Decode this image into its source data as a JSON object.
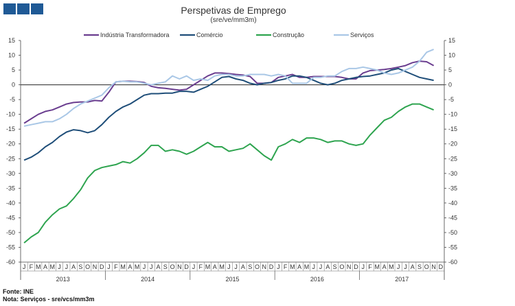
{
  "header": {
    "title": "Perspetivas de Emprego",
    "subtitle": "(sre/ve/mm3m)",
    "brand_color": "#1f5a96"
  },
  "footer": {
    "source": "Fonte: INE",
    "note": "Nota: Serviços - sre/vcs/mm3m"
  },
  "chart_data": {
    "type": "line",
    "title": "Perspetivas de Emprego",
    "subtitle": "(sre/ve/mm3m)",
    "ylim": [
      -60,
      15
    ],
    "yticks": [
      15,
      10,
      5,
      0,
      -5,
      -10,
      -15,
      -20,
      -25,
      -30,
      -35,
      -40,
      -45,
      -50,
      -55,
      -60
    ],
    "y_axis_right": true,
    "grid": false,
    "legend_position": "top",
    "month_labels": [
      "J",
      "F",
      "M",
      "A",
      "M",
      "J",
      "J",
      "A",
      "S",
      "O",
      "N",
      "D"
    ],
    "years": [
      "2013",
      "2014",
      "2015",
      "2016",
      "2017"
    ],
    "series": [
      {
        "name": "Indústria Transformadora",
        "color": "#6a3d8f",
        "values": [
          -13,
          -11.5,
          -10,
          -9,
          -8.5,
          -7.5,
          -6.5,
          -6,
          -5.8,
          -5.8,
          -5.3,
          -5.5,
          -2.5,
          1,
          1.2,
          1.2,
          1.1,
          0.8,
          -0.5,
          -1,
          -1.2,
          -1.5,
          -1.8,
          -1.5,
          0,
          1.5,
          3,
          4,
          4,
          3.8,
          3.5,
          3.3,
          2.8,
          0.5,
          0.5,
          0.8,
          2.5,
          3,
          3.5,
          2.5,
          2.5,
          2.8,
          2.8,
          2.8,
          2.8,
          2.5,
          2,
          2,
          4,
          4.8,
          5,
          5.2,
          5.5,
          6,
          6.5,
          7.5,
          8,
          7.8,
          6.5
        ]
      },
      {
        "name": "Comércio",
        "color": "#1f4e79",
        "values": [
          -25.5,
          -24.5,
          -23,
          -21,
          -19.5,
          -17.5,
          -16,
          -15.2,
          -15.5,
          -16.2,
          -15.5,
          -13.5,
          -11,
          -9,
          -7.5,
          -6.5,
          -5,
          -3.5,
          -3,
          -3,
          -2.8,
          -2.8,
          -2.2,
          -2.2,
          -2.5,
          -1.5,
          -0.5,
          1,
          2.5,
          2.8,
          2,
          1.5,
          0.5,
          0,
          0.5,
          0.8,
          1.5,
          2,
          3,
          3,
          2.5,
          1.5,
          0.5,
          0,
          0.5,
          1.5,
          2,
          2.5,
          2.8,
          3,
          3.5,
          4,
          5,
          5.5,
          4.5,
          3.5,
          2.5,
          2,
          1.5
        ]
      },
      {
        "name": "Construção",
        "color": "#2ea44f",
        "values": [
          -53.5,
          -51.5,
          -50,
          -46.5,
          -44,
          -42,
          -41,
          -38.5,
          -35.5,
          -31.5,
          -29,
          -28,
          -27.5,
          -27,
          -26,
          -26.5,
          -25,
          -23,
          -20.5,
          -20.5,
          -22.5,
          -22,
          -22.5,
          -23.5,
          -22.5,
          -21,
          -19.5,
          -21,
          -21,
          -22.5,
          -22,
          -21.5,
          -20,
          -22,
          -24,
          -25.5,
          -21,
          -20,
          -18.5,
          -19.5,
          -18,
          -18,
          -18.5,
          -19.5,
          -19,
          -19,
          -20,
          -20.5,
          -20,
          -17,
          -14.5,
          -12,
          -11,
          -9,
          -7.5,
          -6.5,
          -6.5,
          -7.5,
          -8.5
        ]
      },
      {
        "name": "Serviços",
        "color": "#a9c7e6",
        "values": [
          -14,
          -13.5,
          -13,
          -12.5,
          -12.5,
          -11.5,
          -10,
          -8,
          -6.5,
          -5.5,
          -4.5,
          -3.5,
          -1,
          1,
          1.2,
          1,
          1,
          0.5,
          0,
          0.5,
          1,
          3,
          2,
          3,
          1.5,
          2,
          1.5,
          3,
          3.5,
          3.5,
          3,
          3,
          3.5,
          3.5,
          3.5,
          3,
          3.5,
          3,
          0.5,
          0.5,
          0.5,
          2.5,
          2.5,
          3,
          3,
          4.5,
          5.5,
          5.5,
          6,
          5.5,
          5,
          4,
          3.5,
          4,
          5,
          6,
          8,
          11,
          12
        ]
      }
    ]
  }
}
